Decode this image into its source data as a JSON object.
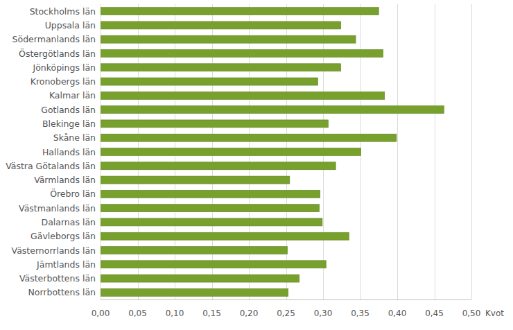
{
  "chart_data": {
    "type": "bar",
    "orientation": "horizontal",
    "categories": [
      "Stockholms län",
      "Uppsala län",
      "Södermanlands län",
      "Östergötlands län",
      "Jönköpings län",
      "Kronobergs län",
      "Kalmar län",
      "Gotlands län",
      "Blekinge län",
      "Skåne län",
      "Hallands län",
      "Västra Götalands län",
      "Värmlands län",
      "Örebro län",
      "Västmanlands län",
      "Dalarnas län",
      "Gävleborgs län",
      "Västernorrlands län",
      "Jämtlands län",
      "Västerbottens län",
      "Norrbottens län"
    ],
    "values": [
      0.375,
      0.324,
      0.344,
      0.381,
      0.324,
      0.293,
      0.383,
      0.463,
      0.307,
      0.399,
      0.351,
      0.317,
      0.255,
      0.296,
      0.295,
      0.299,
      0.335,
      0.252,
      0.304,
      0.268,
      0.253
    ],
    "color": "#77a02d",
    "x_label": "Kvot",
    "xlim": [
      0,
      0.5
    ],
    "xticks": [
      {
        "value": 0,
        "label": "0,00"
      },
      {
        "value": 0.05,
        "label": "0,05"
      },
      {
        "value": 0.1,
        "label": "0,10"
      },
      {
        "value": 0.15,
        "label": "0,15"
      },
      {
        "value": 0.2,
        "label": "0,20"
      },
      {
        "value": 0.25,
        "label": "0,25"
      },
      {
        "value": 0.3,
        "label": "0,30"
      },
      {
        "value": 0.35,
        "label": "0,35"
      },
      {
        "value": 0.4,
        "label": "0,40"
      },
      {
        "value": 0.45,
        "label": "0,45"
      },
      {
        "value": 0.5,
        "label": "0,50"
      }
    ],
    "grid": true
  }
}
